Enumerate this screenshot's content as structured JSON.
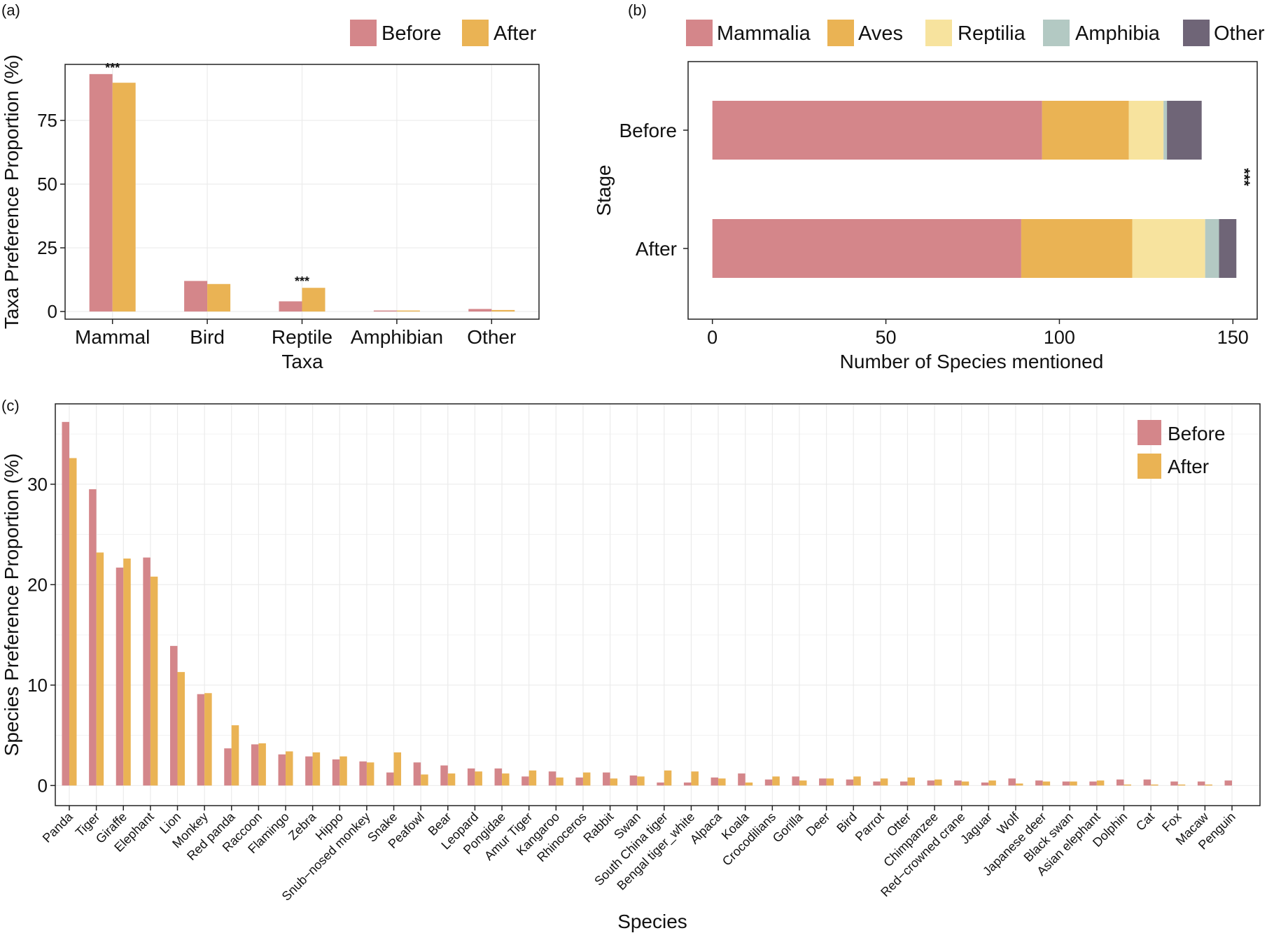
{
  "colors": {
    "before": "#D4868A",
    "after": "#EAB354",
    "mammalia": "#D4868A",
    "aves": "#EAB354",
    "reptilia": "#F7E39E",
    "amphibia": "#B3C9C3",
    "other": "#6F6577",
    "grid": "#EBEBEB",
    "axis": "#222222"
  },
  "chart_data": [
    {
      "panel_label": "(a)",
      "type": "bar",
      "xlabel": "Taxa",
      "ylabel": "Taxa Preference Proportion (%)",
      "categories": [
        "Mammal",
        "Bird",
        "Reptile",
        "Amphibian",
        "Other"
      ],
      "ylim": [
        -3,
        97
      ],
      "yticks": [
        0,
        25,
        50,
        75
      ],
      "grid": true,
      "legend": "top-right",
      "series": [
        {
          "name": "Before",
          "values": [
            93.2,
            12.0,
            4.0,
            0.4,
            1.0
          ]
        },
        {
          "name": "After",
          "values": [
            89.8,
            10.8,
            9.3,
            0.4,
            0.6
          ]
        }
      ],
      "annotations": [
        {
          "category": "Mammal",
          "text": "***"
        },
        {
          "category": "Reptile",
          "text": "***"
        }
      ]
    },
    {
      "panel_label": "(b)",
      "type": "bar",
      "orientation": "horizontal-stacked",
      "xlabel": "Number of Species mentioned",
      "ylabel": "Stage",
      "categories": [
        "Before",
        "After"
      ],
      "xlim": [
        -7,
        157
      ],
      "xticks": [
        0,
        50,
        100,
        150
      ],
      "grid": false,
      "legend": "top",
      "series": [
        {
          "name": "Mammalia",
          "values": [
            95,
            89
          ]
        },
        {
          "name": "Aves",
          "values": [
            25,
            32
          ]
        },
        {
          "name": "Reptilia",
          "values": [
            10,
            21
          ]
        },
        {
          "name": "Amphibia",
          "values": [
            1,
            4
          ]
        },
        {
          "name": "Other",
          "values": [
            10,
            5
          ]
        }
      ],
      "annotations": [
        {
          "text": "***"
        }
      ]
    },
    {
      "panel_label": "(c)",
      "type": "bar",
      "xlabel": "Species",
      "ylabel": "Species Preference Proportion (%)",
      "ylim": [
        -2,
        38
      ],
      "yticks": [
        0,
        10,
        20,
        30
      ],
      "grid": true,
      "legend": "top-right",
      "categories": [
        "Panda",
        "Tiger",
        "Giraffe",
        "Elephant",
        "Lion",
        "Monkey",
        "Red panda",
        "Raccoon",
        "Flamingo",
        "Zebra",
        "Hippo",
        "Snub−nosed monkey",
        "Snake",
        "Peafowl",
        "Bear",
        "Leopard",
        "Pongidae",
        "Amur Tiger",
        "Kangaroo",
        "Rhinoceros",
        "Rabbit",
        "Swan",
        "South China tiger",
        "Bengal tiger_white",
        "Alpaca",
        "Koala",
        "Crocodilians",
        "Gorilla",
        "Deer",
        "Bird",
        "Parrot",
        "Otter",
        "Chimpanzee",
        "Red−crowned crane",
        "Jaguar",
        "Wolf",
        "Japanese deer",
        "Black swan",
        "Asian elephant",
        "Dolphin",
        "Cat",
        "Fox",
        "Macaw",
        "Penguin"
      ],
      "series": [
        {
          "name": "Before",
          "values": [
            36.2,
            29.5,
            21.7,
            22.7,
            13.9,
            9.1,
            3.7,
            4.1,
            3.1,
            2.9,
            2.6,
            2.4,
            1.3,
            2.3,
            2.0,
            1.7,
            1.7,
            0.9,
            1.4,
            0.8,
            1.3,
            1.0,
            0.3,
            0.3,
            0.8,
            1.2,
            0.6,
            0.9,
            0.7,
            0.6,
            0.4,
            0.4,
            0.5,
            0.5,
            0.3,
            0.7,
            0.5,
            0.4,
            0.4,
            0.6,
            0.6,
            0.4,
            0.4,
            0.5
          ]
        },
        {
          "name": "After",
          "values": [
            32.6,
            23.2,
            22.6,
            20.8,
            11.3,
            9.2,
            6.0,
            4.2,
            3.4,
            3.3,
            2.9,
            2.3,
            3.3,
            1.1,
            1.2,
            1.4,
            1.2,
            1.5,
            0.8,
            1.3,
            0.7,
            0.9,
            1.5,
            1.4,
            0.7,
            0.3,
            0.9,
            0.5,
            0.7,
            0.9,
            0.7,
            0.8,
            0.6,
            0.4,
            0.5,
            0.2,
            0.4,
            0.4,
            0.5,
            0.1,
            0.1,
            0.1,
            0.1,
            0.0
          ]
        }
      ]
    }
  ]
}
